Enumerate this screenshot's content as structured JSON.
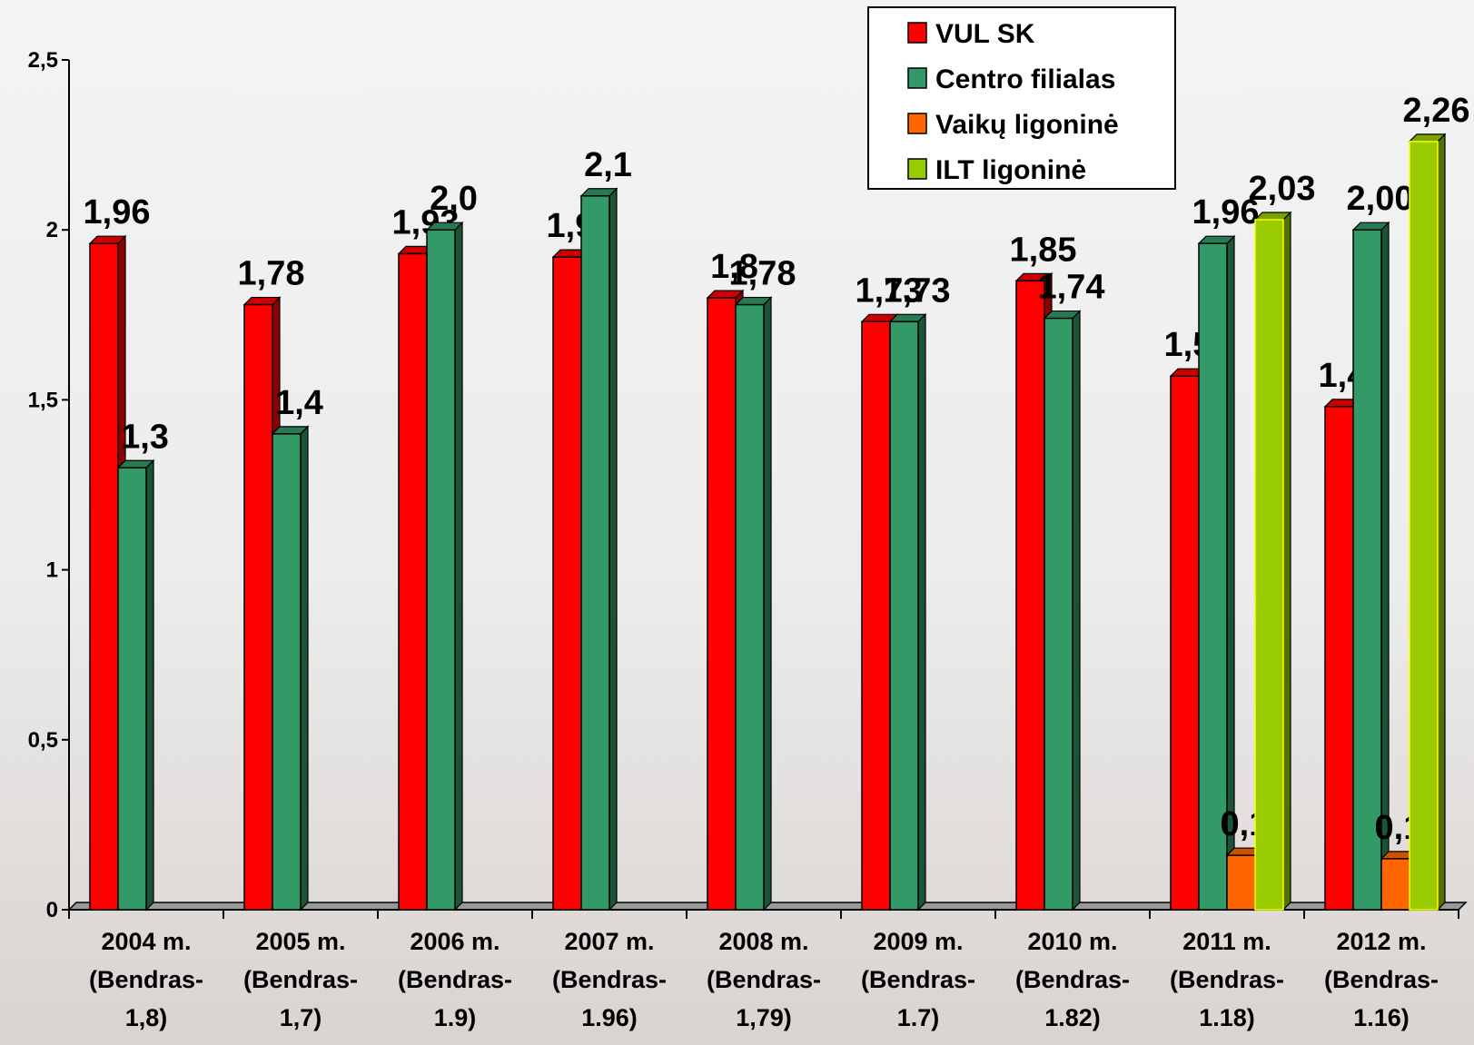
{
  "chart_data": {
    "type": "bar3d",
    "categories": [
      [
        "2004 m.",
        "(Bendras-",
        "1,8)"
      ],
      [
        "2005 m.",
        "(Bendras-",
        "1,7)"
      ],
      [
        "2006 m.",
        "(Bendras-",
        "1.9)"
      ],
      [
        "2007 m.",
        "(Bendras-",
        "1.96)"
      ],
      [
        "2008 m.",
        "(Bendras-",
        "1,79)"
      ],
      [
        "2009 m.",
        "(Bendras-",
        "1.7)"
      ],
      [
        "2010 m.",
        "(Bendras-",
        "1.82)"
      ],
      [
        "2011 m.",
        "(Bendras-",
        "1.18)"
      ],
      [
        "2012 m.",
        "(Bendras-",
        "1.16)"
      ]
    ],
    "series": [
      {
        "name": "VUL SK",
        "color": "#ff0000",
        "values": [
          1.96,
          1.78,
          1.93,
          1.92,
          1.8,
          1.73,
          1.85,
          1.57,
          1.48
        ],
        "value_labels": [
          "1,96",
          "1,78",
          "1,93",
          "1,92",
          "1,8",
          "1,73",
          "1,85",
          "1,57",
          "1,48"
        ]
      },
      {
        "name": "Centro filialas",
        "color": "#339966",
        "values": [
          1.3,
          1.4,
          2.0,
          2.1,
          1.78,
          1.73,
          1.74,
          1.96,
          2.0
        ],
        "value_labels": [
          "1,3",
          "1,4",
          "2,0",
          "2,1",
          "1,78",
          "1,73",
          "1,74",
          "1,96",
          "2,00"
        ]
      },
      {
        "name": "Vaikų ligoninė",
        "color": "#ff6600",
        "values": [
          null,
          null,
          null,
          null,
          null,
          null,
          null,
          0.16,
          0.15
        ],
        "value_labels": [
          null,
          null,
          null,
          null,
          null,
          null,
          null,
          "0,16",
          "0,15"
        ]
      },
      {
        "name": "ILT ligoninė",
        "color": "#99cc00",
        "values": [
          null,
          null,
          null,
          null,
          null,
          null,
          null,
          2.03,
          2.26
        ],
        "value_labels": [
          null,
          null,
          null,
          null,
          null,
          null,
          null,
          "2,03",
          "2,26"
        ]
      }
    ],
    "ylim": [
      0,
      2.5
    ],
    "yticks": [
      0,
      {
        "value": 0.5,
        "label": "0,5"
      },
      1,
      {
        "value": 1.5,
        "label": "1,5"
      },
      2,
      {
        "value": 2.5,
        "label": "2,5"
      }
    ],
    "legend": "top-right"
  }
}
